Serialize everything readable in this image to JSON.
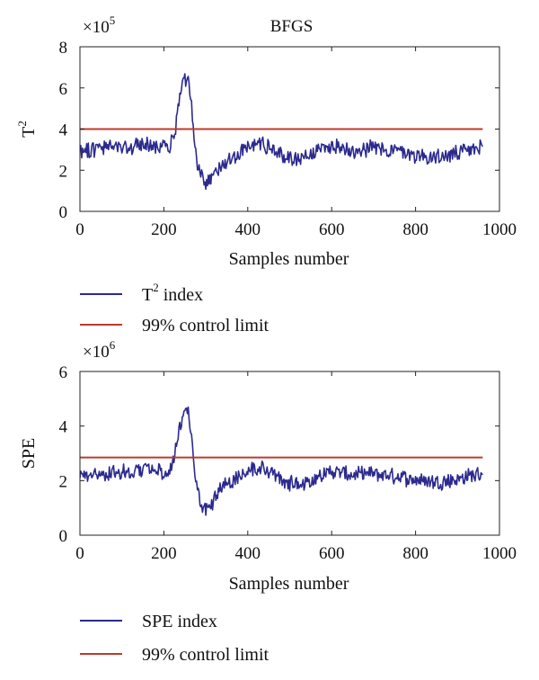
{
  "chart_data": [
    {
      "type": "line",
      "title": "BFGS",
      "xlabel": "Samples number",
      "ylabel": {
        "base": "T",
        "sup": "2"
      },
      "scale_factor": {
        "base": "×10",
        "exp": "5"
      },
      "xlim": [
        0,
        1000
      ],
      "ylim": [
        0,
        8
      ],
      "xticks": [
        0,
        200,
        400,
        600,
        800,
        1000
      ],
      "yticks": [
        0,
        2,
        4,
        6,
        8
      ],
      "grid": false,
      "legend_position": "below",
      "series": [
        {
          "legend": {
            "base": "T",
            "sup": "2",
            "rest": " index"
          },
          "color": "#2b2a8f",
          "kind": "noisy",
          "x_range": [
            0,
            960
          ],
          "knots": [
            [
              0,
              3.0
            ],
            [
              40,
              3.05
            ],
            [
              80,
              3.15
            ],
            [
              120,
              3.1
            ],
            [
              160,
              3.3
            ],
            [
              190,
              3.15
            ],
            [
              210,
              3.0
            ],
            [
              225,
              3.7
            ],
            [
              235,
              5.2
            ],
            [
              248,
              6.4
            ],
            [
              258,
              6.3
            ],
            [
              266,
              5.0
            ],
            [
              274,
              3.0
            ],
            [
              285,
              1.8
            ],
            [
              298,
              1.3
            ],
            [
              315,
              1.6
            ],
            [
              340,
              2.4
            ],
            [
              370,
              2.7
            ],
            [
              400,
              3.1
            ],
            [
              430,
              3.35
            ],
            [
              455,
              3.1
            ],
            [
              480,
              2.7
            ],
            [
              510,
              2.55
            ],
            [
              550,
              2.8
            ],
            [
              600,
              3.2
            ],
            [
              650,
              3.0
            ],
            [
              700,
              3.1
            ],
            [
              750,
              2.95
            ],
            [
              800,
              2.75
            ],
            [
              850,
              2.6
            ],
            [
              900,
              2.8
            ],
            [
              960,
              3.1
            ]
          ],
          "noise_amplitude": 0.35
        },
        {
          "legend": {
            "base": "99% control limit",
            "sup": "",
            "rest": ""
          },
          "color": "#c0392b",
          "kind": "constant",
          "x_range": [
            0,
            960
          ],
          "value": 4.0
        }
      ]
    },
    {
      "type": "line",
      "title": "",
      "xlabel": "Samples number",
      "ylabel": {
        "base": "SPE",
        "sup": ""
      },
      "scale_factor": {
        "base": "×10",
        "exp": "6"
      },
      "xlim": [
        0,
        1000
      ],
      "ylim": [
        0,
        6
      ],
      "xticks": [
        0,
        200,
        400,
        600,
        800,
        1000
      ],
      "yticks": [
        0,
        2,
        4,
        6
      ],
      "grid": false,
      "legend_position": "below",
      "series": [
        {
          "legend": {
            "base": "SPE index",
            "sup": "",
            "rest": ""
          },
          "color": "#2b2a8f",
          "kind": "noisy",
          "x_range": [
            0,
            960
          ],
          "knots": [
            [
              0,
              2.2
            ],
            [
              40,
              2.2
            ],
            [
              80,
              2.3
            ],
            [
              120,
              2.3
            ],
            [
              160,
              2.45
            ],
            [
              190,
              2.35
            ],
            [
              210,
              2.2
            ],
            [
              225,
              2.8
            ],
            [
              235,
              3.8
            ],
            [
              248,
              4.55
            ],
            [
              258,
              4.5
            ],
            [
              266,
              3.5
            ],
            [
              274,
              2.1
            ],
            [
              285,
              1.3
            ],
            [
              300,
              0.95
            ],
            [
              320,
              1.3
            ],
            [
              345,
              1.9
            ],
            [
              375,
              2.1
            ],
            [
              400,
              2.35
            ],
            [
              430,
              2.5
            ],
            [
              455,
              2.3
            ],
            [
              480,
              2.0
            ],
            [
              510,
              1.85
            ],
            [
              550,
              2.0
            ],
            [
              600,
              2.35
            ],
            [
              650,
              2.2
            ],
            [
              700,
              2.25
            ],
            [
              750,
              2.15
            ],
            [
              800,
              2.05
            ],
            [
              850,
              1.95
            ],
            [
              900,
              2.05
            ],
            [
              960,
              2.3
            ]
          ],
          "noise_amplitude": 0.25
        },
        {
          "legend": {
            "base": "99% control limit",
            "sup": "",
            "rest": ""
          },
          "color": "#c0392b",
          "kind": "constant",
          "x_range": [
            0,
            960
          ],
          "value": 2.85
        }
      ]
    }
  ]
}
